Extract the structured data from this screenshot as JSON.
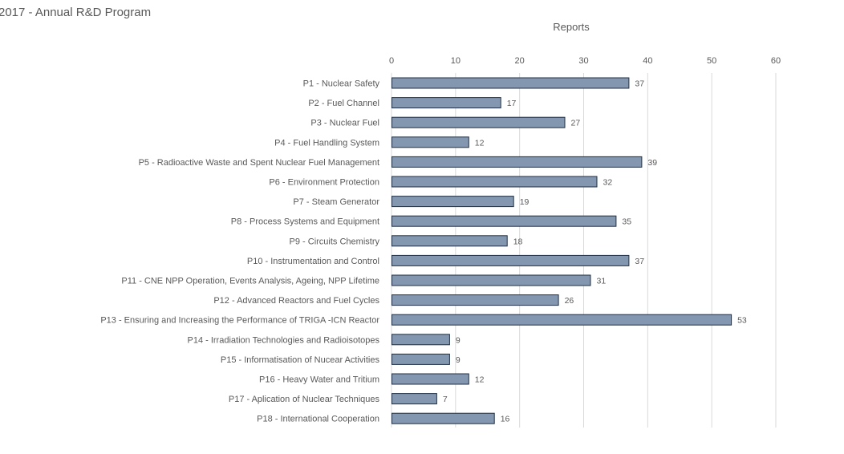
{
  "chart_data": {
    "type": "bar",
    "orientation": "horizontal",
    "title": "2017 - Annual R&D Program",
    "axis_title": "Reports",
    "xlim": [
      0,
      60
    ],
    "ticks": [
      0,
      10,
      20,
      30,
      40,
      50,
      60
    ],
    "grid": true,
    "legend": "none",
    "bar_color": "#8497b0",
    "bar_border_color": "#1f2f45",
    "categories": [
      "P1 - Nuclear Safety",
      "P2 - Fuel Channel",
      "P3 - Nuclear Fuel",
      "P4 - Fuel Handling System",
      "P5 - Radioactive Waste and Spent Nuclear Fuel Management",
      "P6 - Environment Protection",
      "P7 - Steam Generator",
      "P8 - Process Systems and Equipment",
      "P9 - Circuits Chemistry",
      "P10 - Instrumentation and Control",
      "P11 - CNE NPP Operation, Events Analysis, Ageing, NPP Lifetime",
      "P12 - Advanced Reactors and Fuel Cycles",
      "P13 - Ensuring and Increasing the Performance of TRIGA -ICN Reactor",
      "P14 - Irradiation Technologies and Radioisotopes",
      "P15 - Informatisation of Nucear Activities",
      "P16 - Heavy Water and Tritium",
      "P17 - Aplication of Nuclear Techniques",
      "P18 - International Cooperation"
    ],
    "values": [
      37,
      17,
      27,
      12,
      39,
      32,
      19,
      35,
      18,
      37,
      31,
      26,
      53,
      9,
      9,
      12,
      7,
      16
    ]
  }
}
